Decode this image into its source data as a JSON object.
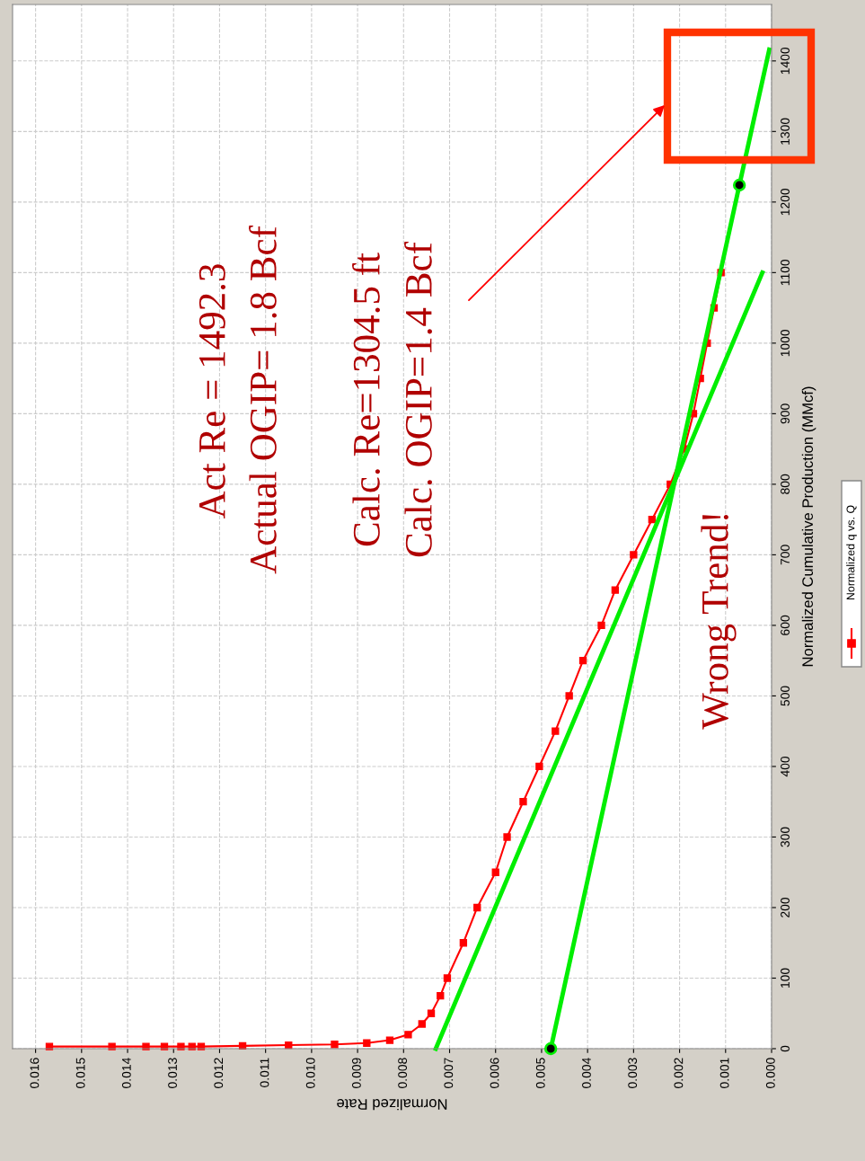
{
  "chart_data": {
    "type": "line",
    "xlabel": "Normalized Rate",
    "ylabel": "Normalized Cumulative Production (MMcf)",
    "xlim": [
      0.0165,
      0
    ],
    "ylim": [
      0,
      1480
    ],
    "xticks": [
      {
        "value": 0,
        "label": "0.000"
      },
      {
        "value": 0.001,
        "label": "0.001"
      },
      {
        "value": 0.002,
        "label": "0.002"
      },
      {
        "value": 0.003,
        "label": "0.003"
      },
      {
        "value": 0.004,
        "label": "0.004"
      },
      {
        "value": 0.005,
        "label": "0.005"
      },
      {
        "value": 0.006,
        "label": "0.006"
      },
      {
        "value": 0.007,
        "label": "0.007"
      },
      {
        "value": 0.008,
        "label": "0.008"
      },
      {
        "value": 0.009,
        "label": "0.009"
      },
      {
        "value": 0.01,
        "label": "0.010"
      },
      {
        "value": 0.011,
        "label": "0.011"
      },
      {
        "value": 0.012,
        "label": "0.012"
      },
      {
        "value": 0.013,
        "label": "0.013"
      },
      {
        "value": 0.014,
        "label": "0.014"
      },
      {
        "value": 0.015,
        "label": "0.015"
      },
      {
        "value": 0.016,
        "label": "0.016"
      }
    ],
    "yticks": [
      0,
      100,
      200,
      300,
      400,
      500,
      600,
      700,
      800,
      900,
      1000,
      1100,
      1200,
      1300,
      1400
    ],
    "grid": true,
    "legend": "right",
    "series": [
      {
        "name": "Normalized q vs. Q",
        "marker": "square",
        "color": "#ff0000",
        "x": [
          0.0157,
          0.01434,
          0.0136,
          0.0132,
          0.01284,
          0.0126,
          0.0124,
          0.0115,
          0.0105,
          0.0095,
          0.0088,
          0.0083,
          0.0079,
          0.0076,
          0.0074,
          0.0072,
          0.00705,
          0.0067,
          0.0064,
          0.006,
          0.00575,
          0.0054,
          0.00505,
          0.0047,
          0.0044,
          0.0041,
          0.0037,
          0.0034,
          0.003,
          0.0026,
          0.0022,
          0.0019,
          0.0017,
          0.00155,
          0.0014,
          0.00125,
          0.0011
        ],
        "values": [
          3,
          3,
          3,
          3,
          3,
          3,
          3,
          4,
          5,
          6,
          8,
          12,
          20,
          35,
          50,
          75,
          100,
          150,
          200,
          250,
          300,
          350,
          400,
          450,
          500,
          550,
          600,
          650,
          700,
          750,
          800,
          850,
          900,
          950,
          1000,
          1050,
          1100
        ]
      },
      {
        "marker": "none",
        "color": "#00ee00",
        "x": [
          0.0073,
          0.0002
        ],
        "values": [
          0,
          1100
        ]
      },
      {
        "marker": "none",
        "color": "#00ee00",
        "x": [
          0.0048,
          0.0007,
          5e-05
        ],
        "values": [
          0,
          1224,
          1416
        ]
      },
      {
        "type": "scatter",
        "marker": "circle",
        "color": "#000000",
        "x": [
          0.0048,
          0.0007
        ],
        "values": [
          0,
          1224
        ]
      }
    ],
    "annotations": [
      "Act Re = 1492.3",
      "Actual OGIP= 1.8 Bcf",
      "Calc. Re=1304.5 ft",
      "Calc. OGIP=1.4 Bcf",
      "Wrong Trend!"
    ]
  }
}
